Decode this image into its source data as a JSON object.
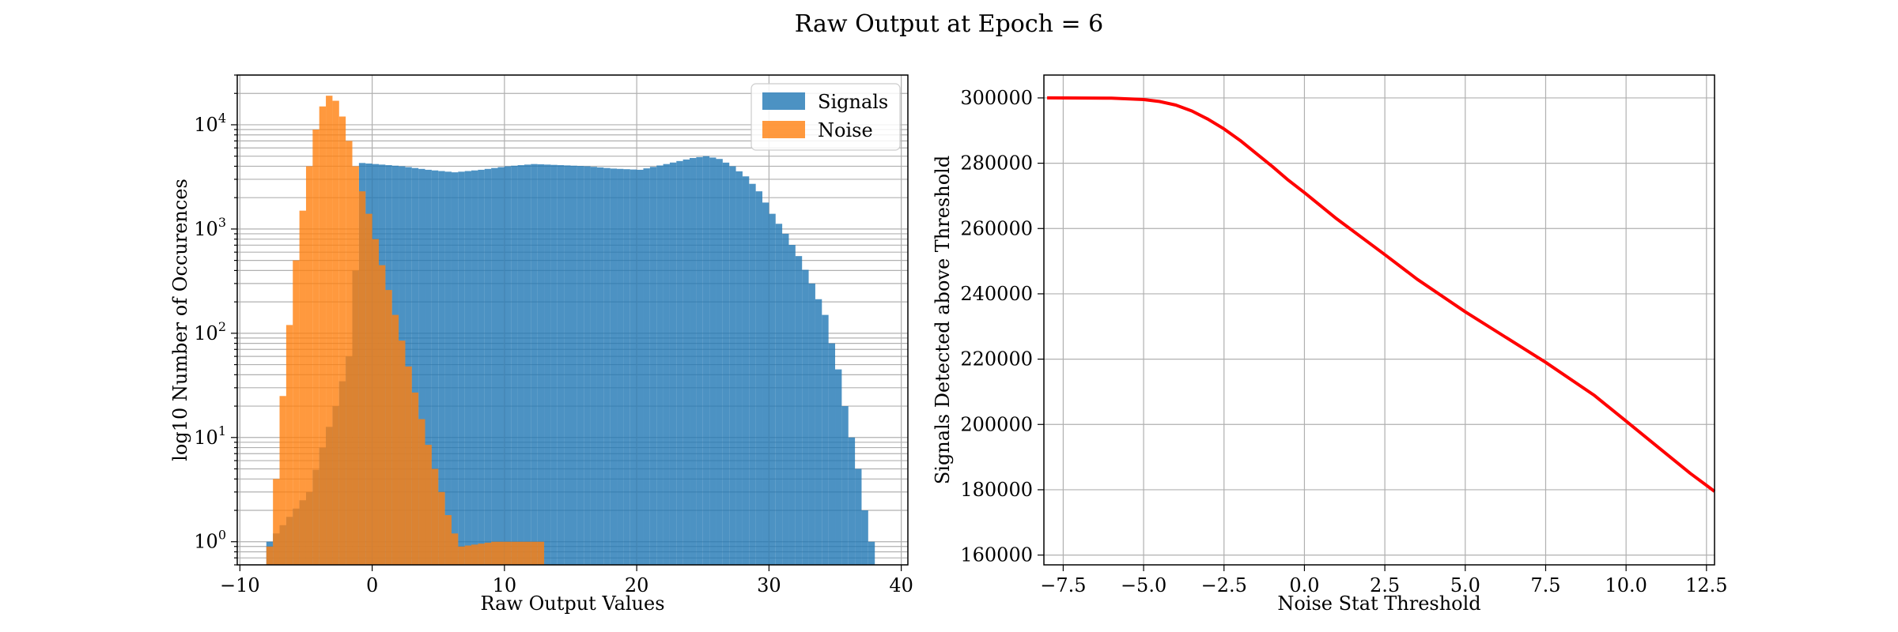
{
  "figure": {
    "suptitle": "Raw Output at Epoch = 6"
  },
  "chart_data": [
    {
      "type": "histogram",
      "xlabel": "Raw Output Values",
      "ylabel": "log10 Number of Occurences",
      "yscale": "log",
      "xlim": [
        -10.2,
        40.5
      ],
      "ylim": [
        0.6,
        30000
      ],
      "xticks": [
        -10,
        0,
        10,
        20,
        30,
        40
      ],
      "xtick_labels": [
        "−10",
        "0",
        "10",
        "20",
        "30",
        "40"
      ],
      "ytick_exponents": [
        0,
        1,
        2,
        3,
        4
      ],
      "grid": true,
      "legend_position": "top-right",
      "bin_width": 0.5,
      "series": [
        {
          "name": "Signals",
          "color": "#1f77b4",
          "opacity": 0.8,
          "bins": [
            [
              -8,
              1
            ],
            [
              -5,
              3
            ],
            [
              -4,
              8
            ],
            [
              -3,
              20
            ],
            [
              -2,
              60
            ],
            [
              -1.5,
              400
            ],
            [
              -1,
              4300
            ],
            [
              0,
              4200
            ],
            [
              2,
              4000
            ],
            [
              4,
              3700
            ],
            [
              6,
              3500
            ],
            [
              8,
              3700
            ],
            [
              10,
              4000
            ],
            [
              12,
              4200
            ],
            [
              14,
              4100
            ],
            [
              16,
              4000
            ],
            [
              18,
              3800
            ],
            [
              20,
              3700
            ],
            [
              22,
              4200
            ],
            [
              24,
              4800
            ],
            [
              25,
              5000
            ],
            [
              26,
              4700
            ],
            [
              27,
              4000
            ],
            [
              28,
              3200
            ],
            [
              29,
              2300
            ],
            [
              30,
              1400
            ],
            [
              31,
              900
            ],
            [
              32,
              550
            ],
            [
              33,
              300
            ],
            [
              34,
              150
            ],
            [
              34.5,
              80
            ],
            [
              35,
              45
            ],
            [
              35.5,
              20
            ],
            [
              36,
              10
            ],
            [
              36.5,
              5
            ],
            [
              37,
              2
            ],
            [
              37.5,
              1
            ]
          ]
        },
        {
          "name": "Noise",
          "color": "#ff7f0e",
          "opacity": 0.8,
          "bins": [
            [
              -8,
              0.9
            ],
            [
              -7.5,
              4
            ],
            [
              -7,
              25
            ],
            [
              -6.5,
              120
            ],
            [
              -6,
              500
            ],
            [
              -5.5,
              1500
            ],
            [
              -5,
              4000
            ],
            [
              -4.5,
              9000
            ],
            [
              -4,
              15000
            ],
            [
              -3.5,
              19000
            ],
            [
              -3,
              17000
            ],
            [
              -2.5,
              12000
            ],
            [
              -2,
              7000
            ],
            [
              -1.5,
              4000
            ],
            [
              -1,
              2300
            ],
            [
              -0.5,
              1400
            ],
            [
              0,
              800
            ],
            [
              0.5,
              450
            ],
            [
              1,
              260
            ],
            [
              1.5,
              150
            ],
            [
              2,
              85
            ],
            [
              2.5,
              48
            ],
            [
              3,
              27
            ],
            [
              3.5,
              15
            ],
            [
              4,
              8.5
            ],
            [
              4.5,
              5
            ],
            [
              5,
              3
            ],
            [
              5.5,
              1.8
            ],
            [
              6,
              1.2
            ],
            [
              6.5,
              0.9
            ],
            [
              9,
              1
            ],
            [
              12.5,
              1
            ]
          ]
        }
      ]
    },
    {
      "type": "line",
      "xlabel": "Noise Stat Threshold",
      "ylabel": "Signals Detected above Threshold",
      "xlim": [
        -8.1,
        12.75
      ],
      "ylim": [
        157000,
        307000
      ],
      "xticks": [
        -7.5,
        -5.0,
        -2.5,
        0.0,
        2.5,
        5.0,
        7.5,
        10.0,
        12.5
      ],
      "xtick_labels": [
        "−7.5",
        "−5.0",
        "−2.5",
        "0.0",
        "2.5",
        "5.0",
        "7.5",
        "10.0",
        "12.5"
      ],
      "yticks": [
        160000,
        180000,
        200000,
        220000,
        240000,
        260000,
        280000,
        300000
      ],
      "ytick_labels": [
        "160000",
        "180000",
        "200000",
        "220000",
        "240000",
        "260000",
        "280000",
        "300000"
      ],
      "grid": true,
      "series": [
        {
          "color": "#ff0000",
          "x": [
            -8.0,
            -6.0,
            -5.0,
            -4.5,
            -4.0,
            -3.5,
            -3.0,
            -2.5,
            -2.0,
            -1.5,
            -1.0,
            -0.5,
            0.0,
            1.0,
            2.5,
            3.5,
            5.0,
            7.5,
            9.0,
            10.0,
            11.0,
            12.0,
            12.75
          ],
          "y": [
            300000,
            299900,
            299500,
            298900,
            297800,
            296000,
            293500,
            290500,
            287000,
            283000,
            279000,
            274800,
            271000,
            263000,
            252000,
            244500,
            234500,
            219000,
            209000,
            201000,
            193000,
            185000,
            179500
          ]
        }
      ]
    }
  ]
}
